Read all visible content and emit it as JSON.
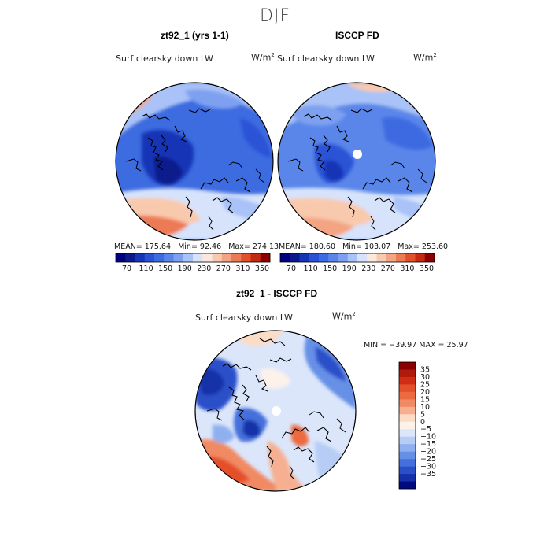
{
  "figure": {
    "season": "DJF",
    "colors": {
      "deep_blue": "#0a1a8c",
      "mid_blue": "#2d5fd8",
      "light_blue": "#8fb4f2",
      "pale": "#f7e6da",
      "light_red": "#f2a58a",
      "mid_red": "#e3532b",
      "deep_red": "#8b0000",
      "land_line": "#000000"
    }
  },
  "panels": [
    {
      "id": "model",
      "title": "zt92_1 (yrs 1-1)",
      "variable": "Surf clearsky down LW",
      "units_label": "W/m",
      "units_sup": "2",
      "mean_text": "MEAN= 175.64",
      "min_text": "Min=   92.46",
      "max_text": "Max= 274.13"
    },
    {
      "id": "obs",
      "title": "ISCCP FD",
      "variable": "Surf clearsky down LW",
      "units_label": "W/m",
      "units_sup": "2",
      "mean_text": "MEAN= 180.60",
      "min_text": "Min= 103.07",
      "max_text": "Max= 253.60"
    }
  ],
  "difference": {
    "title": "zt92_1 - ISCCP FD",
    "variable": "Surf clearsky down LW",
    "units_label": "W/m",
    "units_sup": "2",
    "minmax_text": "MIN = −39.97 MAX =  25.97"
  },
  "chart_data": [
    {
      "type": "heatmap",
      "title": "zt92_1 (yrs 1-1)",
      "projection": "polar stereographic, North Pole",
      "variable": "Surf clearsky down LW",
      "units": "W/m2",
      "stats": {
        "mean": 175.64,
        "min": 92.46,
        "max": 274.13
      },
      "colorbar": {
        "levels": [
          70,
          90,
          110,
          130,
          150,
          170,
          190,
          210,
          230,
          250,
          270,
          290,
          310,
          330,
          350
        ],
        "tick_labels": [
          "70",
          "110",
          "150",
          "190",
          "230",
          "270",
          "310",
          "350"
        ],
        "colors": [
          "#00007f",
          "#0a1a8c",
          "#1636b6",
          "#2a52d6",
          "#3d6be0",
          "#5a86ea",
          "#7ea0f0",
          "#a9c2f7",
          "#d6e3fb",
          "#fbe8dc",
          "#f9c9ad",
          "#f3a482",
          "#ec7a55",
          "#e0502b",
          "#c22a12",
          "#8b0000"
        ]
      }
    },
    {
      "type": "heatmap",
      "title": "ISCCP FD",
      "projection": "polar stereographic, North Pole",
      "variable": "Surf clearsky down LW",
      "units": "W/m2",
      "stats": {
        "mean": 180.6,
        "min": 103.07,
        "max": 253.6
      },
      "colorbar": {
        "levels": [
          70,
          90,
          110,
          130,
          150,
          170,
          190,
          210,
          230,
          250,
          270,
          290,
          310,
          330,
          350
        ],
        "tick_labels": [
          "70",
          "110",
          "150",
          "190",
          "230",
          "270",
          "310",
          "350"
        ],
        "colors": [
          "#00007f",
          "#0a1a8c",
          "#1636b6",
          "#2a52d6",
          "#3d6be0",
          "#5a86ea",
          "#7ea0f0",
          "#a9c2f7",
          "#d6e3fb",
          "#fbe8dc",
          "#f9c9ad",
          "#f3a482",
          "#ec7a55",
          "#e0502b",
          "#c22a12",
          "#8b0000"
        ]
      }
    },
    {
      "type": "heatmap",
      "title": "zt92_1 - ISCCP FD",
      "projection": "polar stereographic, North Pole",
      "variable": "Surf clearsky down LW",
      "units": "W/m2",
      "stats": {
        "min": -39.97,
        "max": 25.97
      },
      "colorbar": {
        "tick_labels": [
          "35",
          "30",
          "25",
          "20",
          "15",
          "10",
          "5",
          "0",
          "−5",
          "−10",
          "−15",
          "−20",
          "−25",
          "−30",
          "−35"
        ],
        "colors": [
          "#8b0000",
          "#b01a0a",
          "#d02e14",
          "#e4502b",
          "#ec6a40",
          "#f18a63",
          "#f6b091",
          "#fbdcc6",
          "#fdf2ea",
          "#dbe6fb",
          "#b8cdf5",
          "#8fb0ef",
          "#6690e6",
          "#4470dc",
          "#2a4fc8",
          "#1530a8",
          "#000a80"
        ]
      }
    }
  ]
}
